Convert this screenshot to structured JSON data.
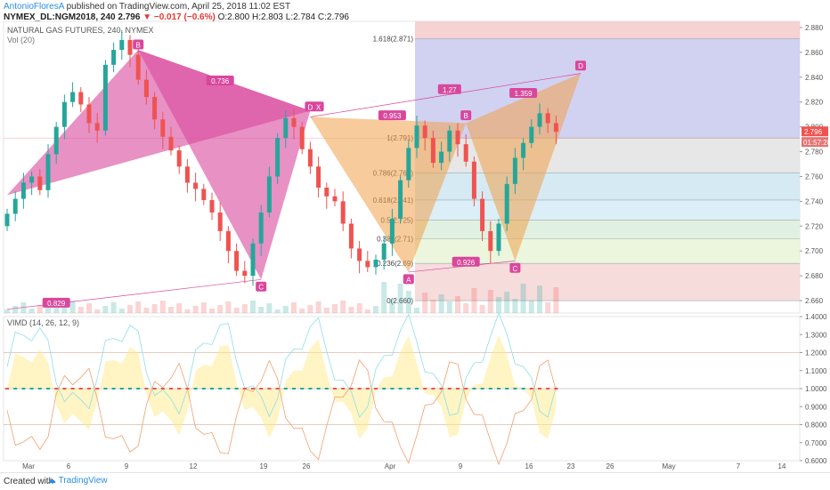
{
  "header": {
    "author": "AntonioFloresA",
    "published": " published on TradingView.com, April 25, 2018 11:02 EST",
    "symbol": "NYMEX_DL:NGM2018, 240",
    "last": "2.796",
    "change": "▼ −0.017 (−0.6%)",
    "ohlc": "O:2.800 H:2.803 L:2.784 C:2.796"
  },
  "legend": {
    "title": "NATURAL GAS FUTURES, 240, NYMEX",
    "vol": "Vol (20)",
    "vimd": "VIMD (14, 26, 12, 9)"
  },
  "footer": {
    "created": "Created with",
    "brand": "TradingView"
  },
  "colors": {
    "up": "#26a69a",
    "down": "#ef5350",
    "magenta": "#d9479d",
    "orange": "#f0a04b",
    "axis": "#555555"
  },
  "chart_data": [
    {
      "type": "candlestick",
      "ylim": [
        2.65,
        2.885
      ],
      "y_ticks": [
        "2.880",
        "2.860",
        "2.840",
        "2.820",
        "2.800",
        "2.780",
        "2.760",
        "2.740",
        "2.720",
        "2.700",
        "2.680",
        "2.660"
      ],
      "x_ticks": [
        "Mar",
        "6",
        "9",
        "12",
        "19",
        "26",
        "Apr",
        "9",
        "16",
        "23",
        "26",
        "May",
        "7",
        "14"
      ],
      "price_label": "2.796",
      "time_label": "01:57:28",
      "series": [
        {
          "name": "close",
          "values": [
            2.73,
            2.742,
            2.755,
            2.76,
            2.749,
            2.778,
            2.8,
            2.82,
            2.828,
            2.818,
            2.803,
            2.797,
            2.85,
            2.862,
            2.87,
            2.858,
            2.838,
            2.824,
            2.806,
            2.792,
            2.781,
            2.768,
            2.755,
            2.75,
            2.741,
            2.731,
            2.716,
            2.7,
            2.684,
            2.68,
            2.706,
            2.731,
            2.76,
            2.791,
            2.807,
            2.8,
            2.782,
            2.768,
            2.751,
            2.744,
            2.74,
            2.722,
            2.702,
            2.692,
            2.687,
            2.693,
            2.706,
            2.726,
            2.757,
            2.783,
            2.801,
            2.791,
            2.771,
            2.78,
            2.797,
            2.786,
            2.772,
            2.742,
            2.716,
            2.7,
            2.722,
            2.754,
            2.775,
            2.787,
            2.8,
            2.811,
            2.803,
            2.796
          ]
        }
      ],
      "harmonic_patterns": [
        {
          "name": "pattern-1",
          "points": [
            "D",
            "X",
            "B",
            "C"
          ],
          "ratios": [
            "0.736",
            "0.829"
          ]
        },
        {
          "name": "pattern-2",
          "points": [
            "X",
            "A",
            "B",
            "C",
            "D"
          ],
          "ratios": [
            "0.953",
            "1.27",
            "0.926",
            "1.359"
          ]
        }
      ],
      "pattern_points": [
        "D",
        "X",
        "A",
        "B",
        "C",
        "D"
      ],
      "fibonacci": {
        "levels": [
          {
            "ratio": "1.618",
            "label": "1.618(2.871)",
            "price": 2.871
          },
          {
            "ratio": "1",
            "label": "1(2.791)",
            "price": 2.791
          },
          {
            "ratio": "0.786",
            "label": "0.786(2.763)",
            "price": 2.763
          },
          {
            "ratio": "0.618",
            "label": "0.618(2.741)",
            "price": 2.741
          },
          {
            "ratio": "0.5",
            "label": "0.5(2.725)",
            "price": 2.725
          },
          {
            "ratio": "0.382",
            "label": "0.382(2.71)",
            "price": 2.71
          },
          {
            "ratio": "0.236",
            "label": "0.236(2.69)",
            "price": 2.69
          },
          {
            "ratio": "0",
            "label": "0(2.660)",
            "price": 2.66
          }
        ]
      }
    },
    {
      "type": "line",
      "name": "VIMD (14, 26, 12, 9)",
      "ylim": [
        0.6,
        1.4
      ],
      "y_ticks": [
        "1.4000",
        "1.3000",
        "1.2000",
        "1.1000",
        "1.0000",
        "0.9000",
        "0.8000",
        "0.7000",
        "0.6000"
      ],
      "reference_lines": [
        1.2,
        1.0,
        0.8
      ]
    }
  ]
}
